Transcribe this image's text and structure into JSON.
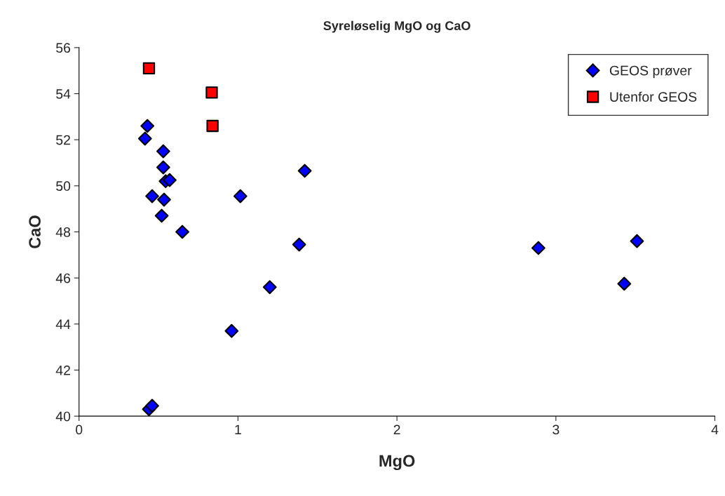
{
  "chart_data": {
    "type": "scatter",
    "title": "Syreløselig MgO og CaO",
    "xlabel": "MgO",
    "ylabel": "CaO",
    "xlim": [
      0,
      4
    ],
    "xticks": [
      0,
      1,
      2,
      3,
      4
    ],
    "ylim": [
      40,
      56
    ],
    "yticks": [
      40,
      42,
      44,
      46,
      48,
      50,
      52,
      54,
      56
    ],
    "grid": false,
    "legend": "top right",
    "series": [
      {
        "name": "GEOS prøver",
        "color": "#0000ff",
        "marker": "diamond",
        "x": [
          0.43,
          0.415,
          0.53,
          0.53,
          0.545,
          0.57,
          0.46,
          0.535,
          1.015,
          1.42,
          0.52,
          0.65,
          1.385,
          1.2,
          0.96,
          0.44,
          0.46,
          2.89,
          3.51,
          3.43
        ],
        "values": [
          52.6,
          52.05,
          51.5,
          50.8,
          50.2,
          50.25,
          49.55,
          49.4,
          49.55,
          50.65,
          48.7,
          48.0,
          47.45,
          45.6,
          43.7,
          40.3,
          40.45,
          47.3,
          47.6,
          45.75
        ]
      },
      {
        "name": "Utenfor GEOS",
        "color": "#ff0000",
        "marker": "square",
        "x": [
          0.44,
          0.835,
          0.84
        ],
        "values": [
          55.1,
          54.05,
          52.6
        ]
      }
    ]
  }
}
